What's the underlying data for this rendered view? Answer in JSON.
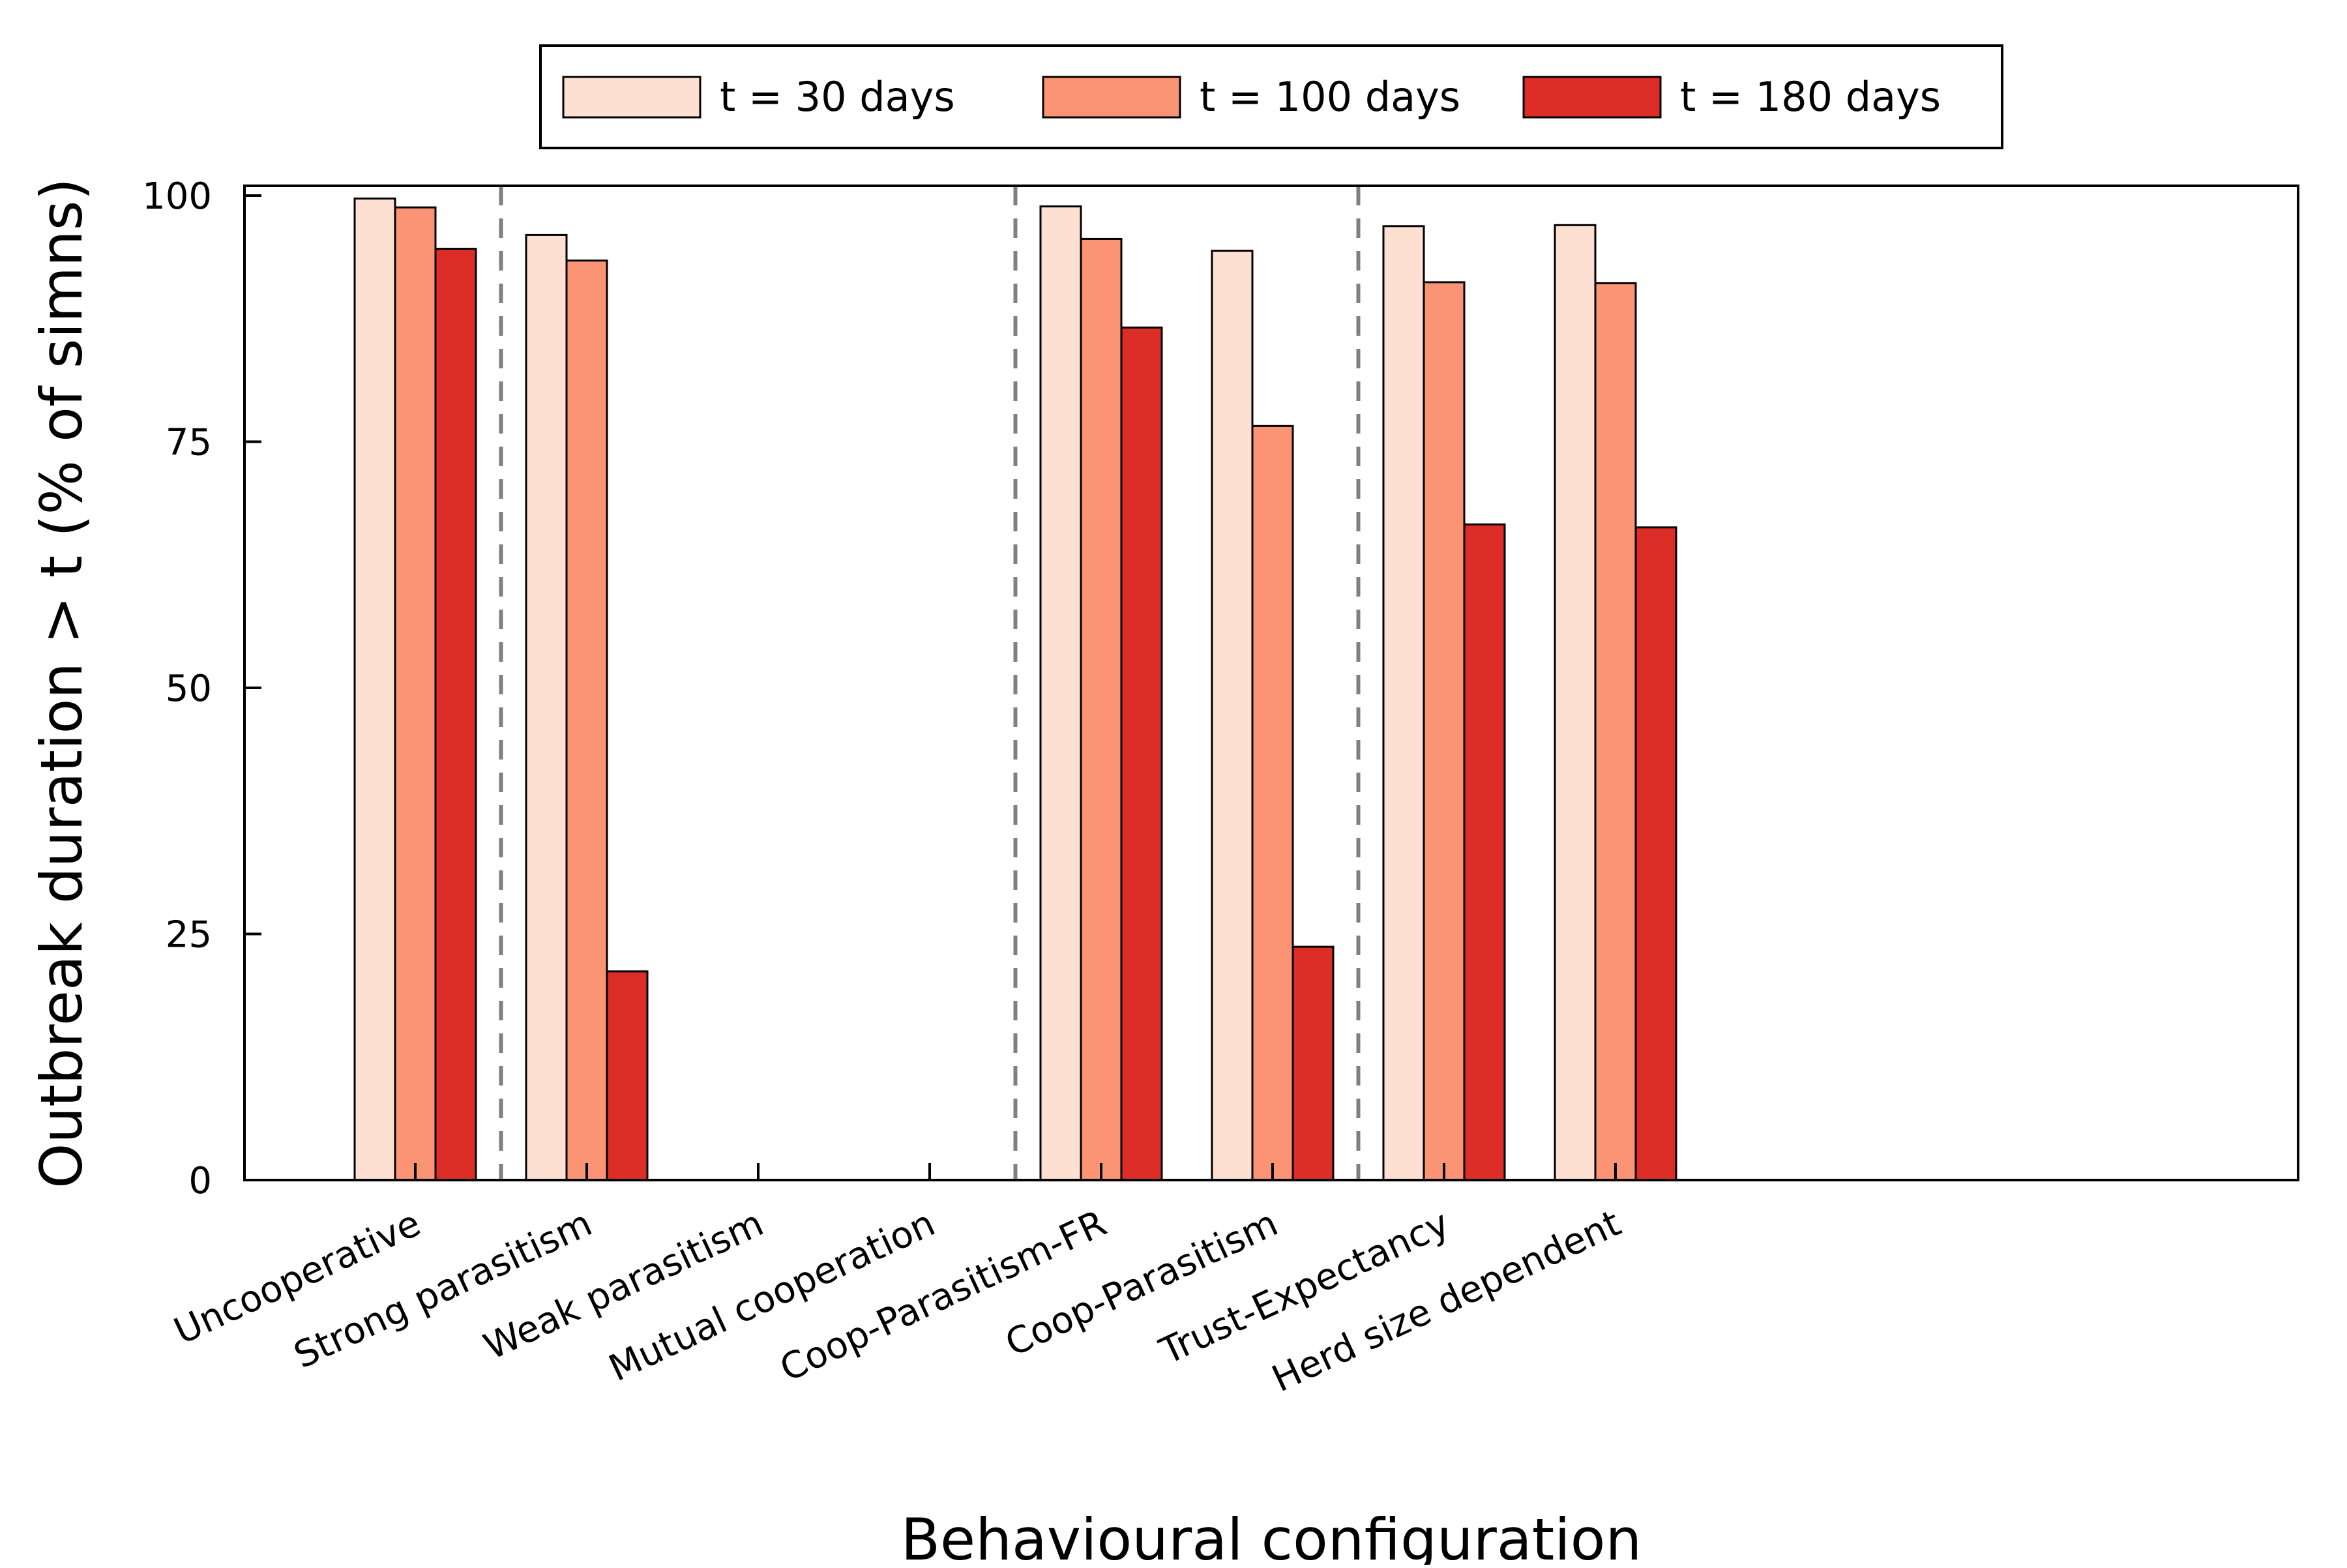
{
  "chart_data": {
    "type": "bar",
    "title": "",
    "xlabel": "Behavioural configuration",
    "ylabel": "Outbreak duration > t (% of simns)",
    "ylim": [
      0,
      100
    ],
    "yticks": [
      0,
      25,
      50,
      75,
      100
    ],
    "grid": false,
    "legend_position": "top-center",
    "categories": [
      "Uncooperative",
      "Strong parasitism",
      "Weak parasitism",
      "Mutual cooperation",
      "Coop-Parasitism-FR",
      "Coop-Parasitism",
      "Trust-Expectancy",
      "Herd size dependent"
    ],
    "series": [
      {
        "name": "t = 30 days",
        "color": "#fde0d2",
        "values": [
          99.7,
          96.0,
          0,
          0,
          98.9,
          94.4,
          96.9,
          97.0
        ]
      },
      {
        "name": "t = 100 days",
        "color": "#fb9475",
        "values": [
          98.8,
          93.4,
          0,
          0,
          95.6,
          76.6,
          91.2,
          91.1
        ]
      },
      {
        "name": "t = 180 days",
        "color": "#dc2d27",
        "values": [
          94.6,
          21.2,
          0,
          0,
          86.6,
          23.7,
          66.6,
          66.3
        ]
      }
    ],
    "group_separators_after": [
      0,
      3,
      5
    ]
  }
}
